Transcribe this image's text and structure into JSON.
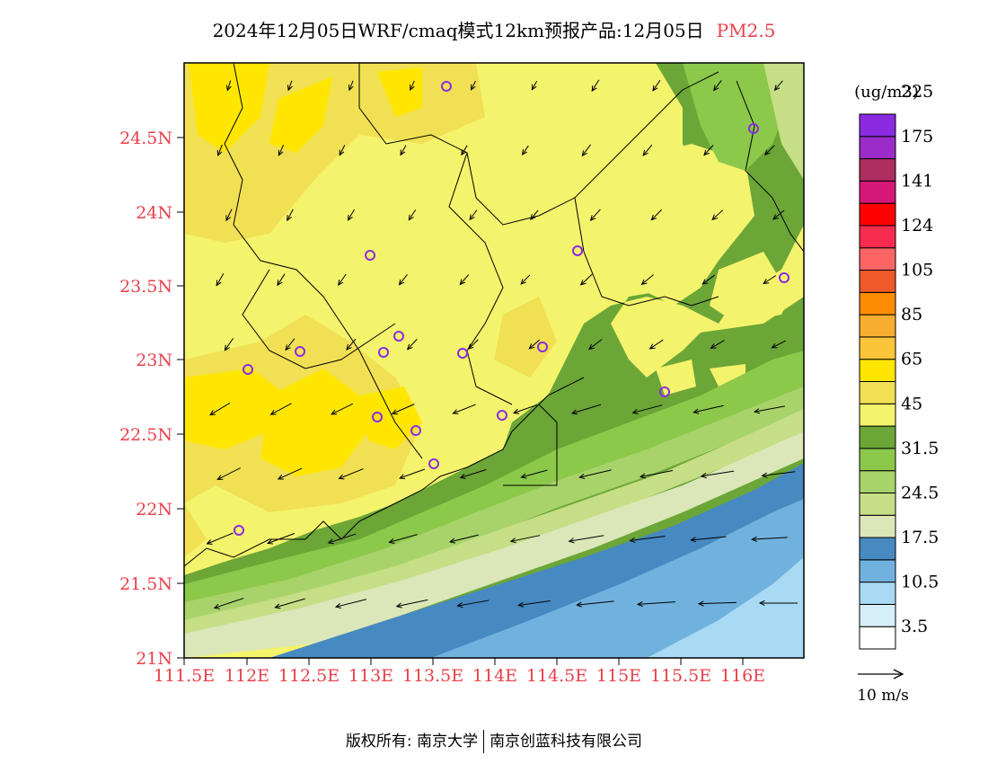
{
  "title": {
    "main": "2024年12月05日WRF/cmaq模式12km预报产品:12月05日",
    "species": "PM2.5"
  },
  "axes": {
    "lat_labels": [
      "24.5N",
      "24N",
      "23.5N",
      "23N",
      "22.5N",
      "22N",
      "21.5N",
      "21N"
    ],
    "lon_labels": [
      "111.5E",
      "112E",
      "112.5E",
      "113E",
      "113.5E",
      "114E",
      "114.5E",
      "115E",
      "115.5E",
      "116E"
    ],
    "label_color": "#e8404a"
  },
  "legend": {
    "unit": "(ug/m3)",
    "colors": [
      "#ffffff",
      "#d6eef9",
      "#a8daf3",
      "#70b2dd",
      "#4789c1",
      "#dbe7b9",
      "#c6de86",
      "#a8d36a",
      "#8cc84a",
      "#6ba636",
      "#f4f36c",
      "#f1e053",
      "#ffe600",
      "#fbc53a",
      "#f7ad2f",
      "#fb8c00",
      "#ef5a28",
      "#fd6565",
      "#f72b4f",
      "#ff0000",
      "#d6177a",
      "#ae2e60",
      "#9b2cc9",
      "#8a2be2"
    ],
    "labels": [
      "3.5",
      "10.5",
      "17.5",
      "24.5",
      "31.5",
      "45",
      "65",
      "85",
      "105",
      "124",
      "141",
      "175",
      "225"
    ]
  },
  "wind_scale": {
    "label": "10 m/s"
  },
  "footer": {
    "left": "版权所有: 南京大学",
    "right": "南京创蓝科技有限公司"
  }
}
